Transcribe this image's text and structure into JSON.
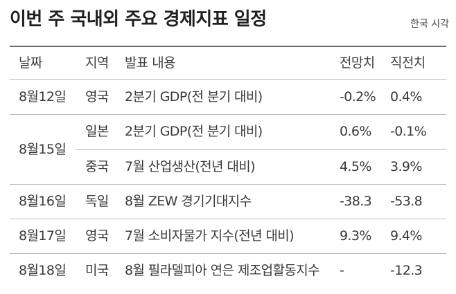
{
  "title": "이번 주 국내외 주요 경제지표 일정",
  "timezone_note": "한국 시각",
  "columns": {
    "date": "날짜",
    "region": "지역",
    "event": "발표 내용",
    "forecast": "전망치",
    "previous": "직전치"
  },
  "rows": [
    {
      "date": "8월12일",
      "region": "영국",
      "event": "2분기 GDP(전 분기 대비)",
      "forecast": "-0.2%",
      "previous": "0.4%"
    },
    {
      "date": "8월15일",
      "region": "일본",
      "event": "2분기 GDP(전 분기 대비)",
      "forecast": "0.6%",
      "previous": "-0.1%"
    },
    {
      "date": "",
      "region": "중국",
      "event": "7월 산업생산(전년 대비)",
      "forecast": "4.5%",
      "previous": "3.9%"
    },
    {
      "date": "8월16일",
      "region": "독일",
      "event": "8월 ZEW 경기기대지수",
      "forecast": "-38.3",
      "previous": "-53.8"
    },
    {
      "date": "8월17일",
      "region": "영국",
      "event": "7월 소비자물가 지수(전년 대비)",
      "forecast": "9.3%",
      "previous": "9.4%"
    },
    {
      "date": "8월18일",
      "region": "미국",
      "event": "8월 필라델피아 연은 제조업활동지수",
      "forecast": "-",
      "previous": "-12.3"
    }
  ]
}
